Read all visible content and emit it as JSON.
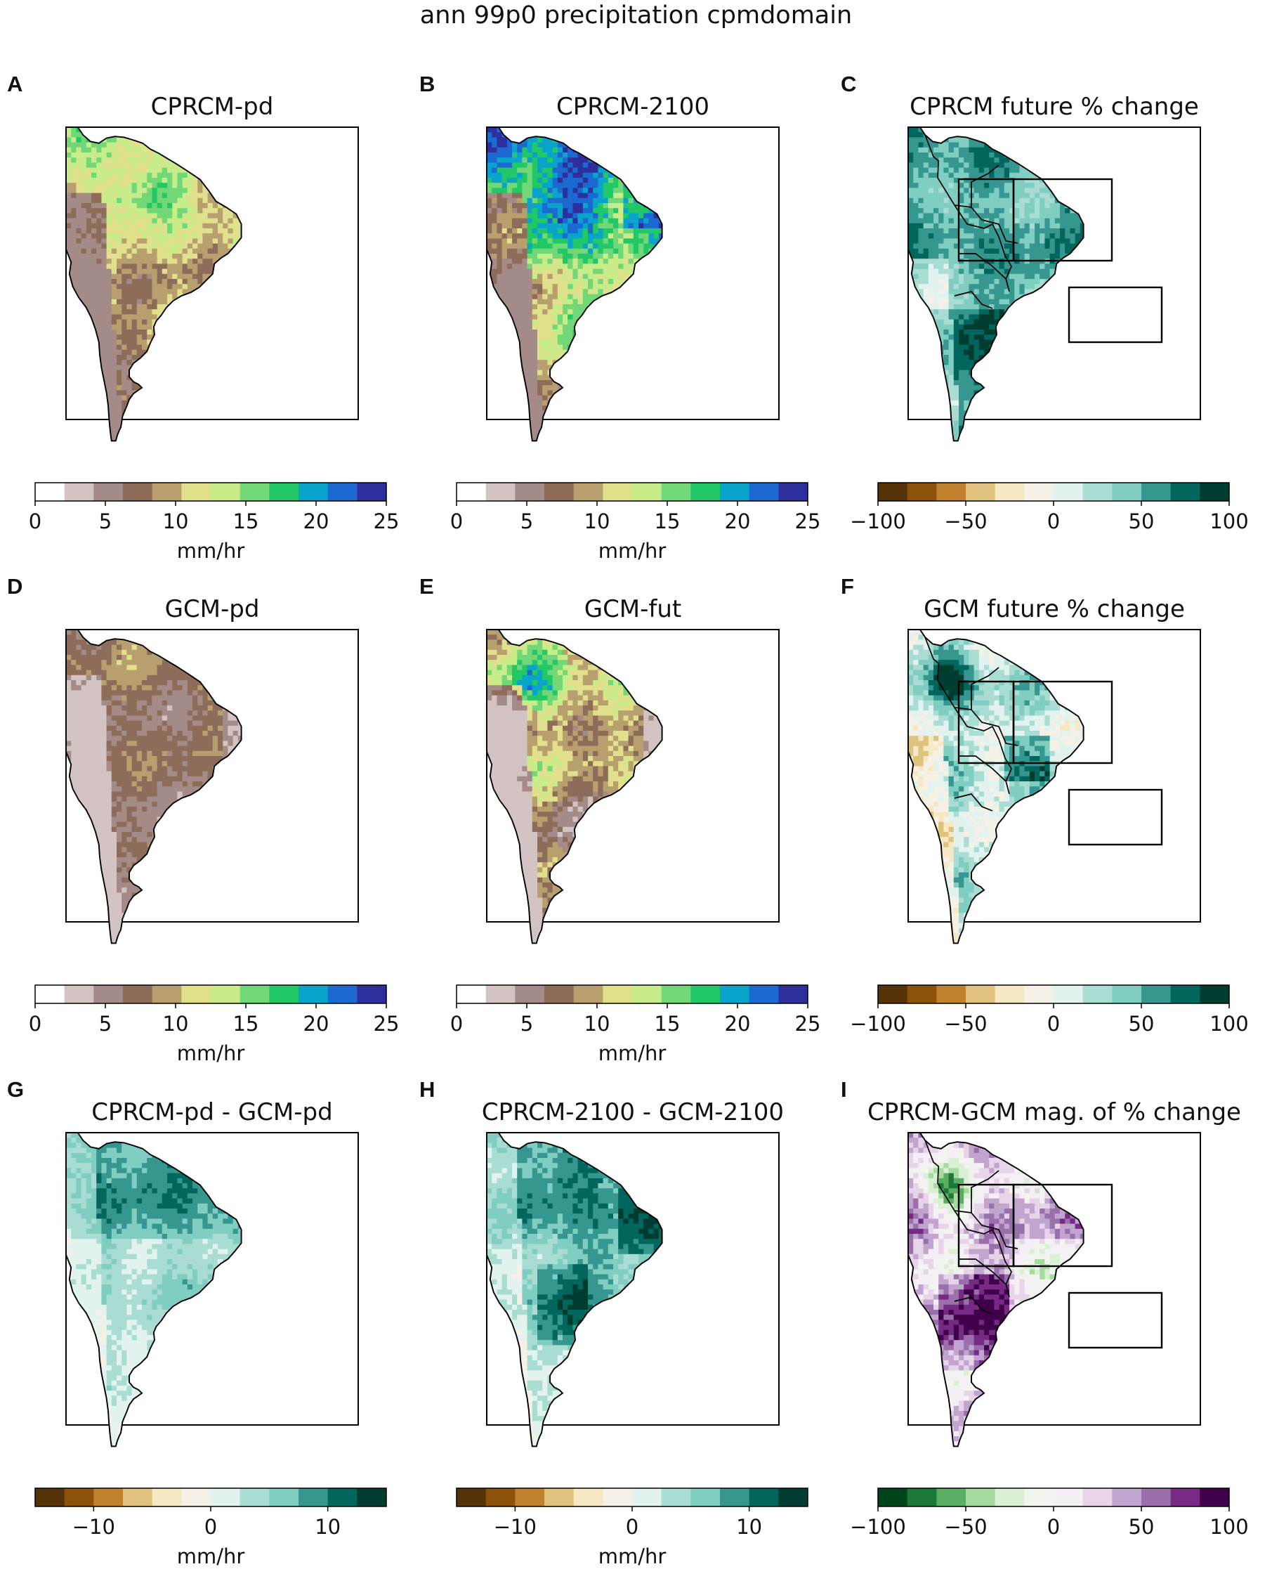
{
  "figure_title": "ann 99p0 precipitation cpmdomain",
  "colors": {
    "precip": [
      "#ffffff",
      "#d3c4c3",
      "#a48b88",
      "#8e6c5a",
      "#b8a06e",
      "#e1e08c",
      "#c9ec8a",
      "#72d877",
      "#21c865",
      "#0aa3cb",
      "#1b69d1",
      "#2e2f9c"
    ],
    "brbg": [
      "#553207",
      "#8c520a",
      "#bf812d",
      "#dfc27d",
      "#f6e8c3",
      "#f5f1e6",
      "#e2f2ef",
      "#a9ddd3",
      "#80cdc1",
      "#35978f",
      "#01665e",
      "#003c30"
    ],
    "prgn": [
      "#00441b",
      "#1b7837",
      "#5aae61",
      "#a6dba0",
      "#d9f0d3",
      "#f2f5ef",
      "#f4eef5",
      "#e7d4e8",
      "#c2a5cf",
      "#9970ab",
      "#762a83",
      "#40004b"
    ],
    "land_outline": "#000000",
    "frame": "#000000"
  },
  "chart_data": [
    {
      "id": "A",
      "type": "heatmap",
      "title": "CPRCM-pd",
      "map": "South America",
      "colormap": "precip",
      "cbar": {
        "ticks": [
          "0",
          "5",
          "10",
          "15",
          "20",
          "25"
        ],
        "tick_values": [
          0,
          5,
          10,
          15,
          20,
          25
        ],
        "range": [
          0,
          25
        ],
        "n_levels": 12,
        "unit": "mm/hr"
      },
      "boxes": false,
      "borders": false,
      "pattern": "pd_cprcm",
      "level_range": [
        2,
        9
      ]
    },
    {
      "id": "B",
      "type": "heatmap",
      "title": "CPRCM-2100",
      "map": "South America",
      "colormap": "precip",
      "cbar": {
        "ticks": [
          "0",
          "5",
          "10",
          "15",
          "20",
          "25"
        ],
        "tick_values": [
          0,
          5,
          10,
          15,
          20,
          25
        ],
        "range": [
          0,
          25
        ],
        "n_levels": 12,
        "unit": "mm/hr"
      },
      "boxes": false,
      "borders": false,
      "pattern": "fut_cprcm",
      "level_range": [
        2,
        11
      ]
    },
    {
      "id": "C",
      "type": "heatmap",
      "title": "CPRCM future % change",
      "map": "South America",
      "colormap": "brbg",
      "cbar": {
        "ticks": [
          "−100",
          "−50",
          "0",
          "50",
          "100"
        ],
        "tick_values": [
          -100,
          -50,
          0,
          50,
          100
        ],
        "range": [
          -100,
          100
        ],
        "n_levels": 12,
        "unit": ""
      },
      "boxes": true,
      "borders": true,
      "pattern": "change_cprcm",
      "level_range": [
        5,
        11
      ]
    },
    {
      "id": "D",
      "type": "heatmap",
      "title": "GCM-pd",
      "map": "South America",
      "colormap": "precip",
      "cbar": {
        "ticks": [
          "0",
          "5",
          "10",
          "15",
          "20",
          "25"
        ],
        "tick_values": [
          0,
          5,
          10,
          15,
          20,
          25
        ],
        "range": [
          0,
          25
        ],
        "n_levels": 12,
        "unit": "mm/hr"
      },
      "boxes": false,
      "borders": false,
      "pattern": "pd_gcm",
      "level_range": [
        1,
        6
      ]
    },
    {
      "id": "E",
      "type": "heatmap",
      "title": "GCM-fut",
      "map": "South America",
      "colormap": "precip",
      "cbar": {
        "ticks": [
          "0",
          "5",
          "10",
          "15",
          "20",
          "25"
        ],
        "tick_values": [
          0,
          5,
          10,
          15,
          20,
          25
        ],
        "range": [
          0,
          25
        ],
        "n_levels": 12,
        "unit": "mm/hr"
      },
      "boxes": false,
      "borders": false,
      "pattern": "fut_gcm",
      "level_range": [
        1,
        10
      ]
    },
    {
      "id": "F",
      "type": "heatmap",
      "title": "GCM future % change",
      "map": "South America",
      "colormap": "brbg",
      "cbar": {
        "ticks": [
          "−100",
          "−50",
          "0",
          "50",
          "100"
        ],
        "tick_values": [
          -100,
          -50,
          0,
          50,
          100
        ],
        "range": [
          -100,
          100
        ],
        "n_levels": 12,
        "unit": ""
      },
      "boxes": true,
      "borders": true,
      "pattern": "change_gcm",
      "level_range": [
        3,
        11
      ]
    },
    {
      "id": "G",
      "type": "heatmap",
      "title": "CPRCM-pd - GCM-pd",
      "map": "South America",
      "colormap": "brbg",
      "cbar": {
        "ticks": [
          "−10",
          "0",
          "10"
        ],
        "tick_values": [
          -10,
          0,
          10
        ],
        "range": [
          -15,
          15
        ],
        "n_levels": 12,
        "unit": "mm/hr"
      },
      "boxes": false,
      "borders": false,
      "pattern": "diff_pd",
      "level_range": [
        5,
        10
      ]
    },
    {
      "id": "H",
      "type": "heatmap",
      "title": "CPRCM-2100 - GCM-2100",
      "map": "South America",
      "colormap": "brbg",
      "cbar": {
        "ticks": [
          "−10",
          "0",
          "10"
        ],
        "tick_values": [
          -10,
          0,
          10
        ],
        "range": [
          -15,
          15
        ],
        "n_levels": 12,
        "unit": "mm/hr"
      },
      "boxes": false,
      "borders": false,
      "pattern": "diff_fut",
      "level_range": [
        5,
        11
      ]
    },
    {
      "id": "I",
      "type": "heatmap",
      "title": "CPRCM-GCM mag. of % change",
      "map": "South America",
      "colormap": "prgn",
      "cbar": {
        "ticks": [
          "−100",
          "−50",
          "0",
          "50",
          "100"
        ],
        "tick_values": [
          -100,
          -50,
          0,
          50,
          100
        ],
        "range": [
          -100,
          100
        ],
        "n_levels": 12,
        "unit": ""
      },
      "boxes": true,
      "borders": true,
      "pattern": "mag_change",
      "level_range": [
        1,
        11
      ]
    }
  ]
}
